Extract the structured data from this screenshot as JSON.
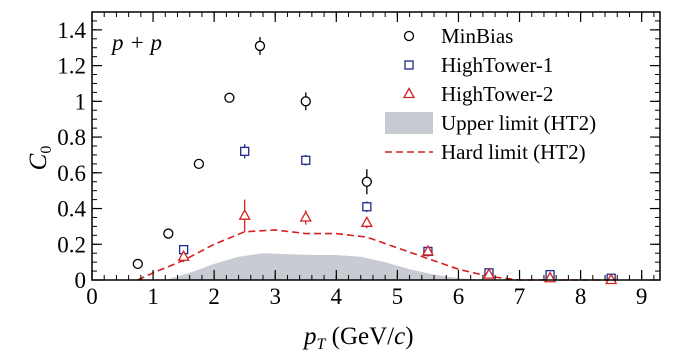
{
  "chart_data": {
    "type": "scatter",
    "annotation": "p + p",
    "xlabel": {
      "main": "p",
      "sub": "T",
      "rest": " (GeV/",
      "italic_c": "c",
      "close": ")"
    },
    "ylabel": {
      "main": "C",
      "sub": "0"
    },
    "xlim": [
      0,
      9.3
    ],
    "ylim": [
      0,
      1.5
    ],
    "x_ticks": [
      "0",
      "1",
      "2",
      "3",
      "4",
      "5",
      "6",
      "7",
      "8",
      "9"
    ],
    "y_ticks": [
      "0",
      "0.2",
      "0.4",
      "0.6",
      "0.8",
      "1",
      "1.2",
      "1.4"
    ],
    "legend_position": "top-right",
    "series": [
      {
        "name": "MinBias",
        "marker": "circle",
        "color": "#000000",
        "x": [
          0.75,
          1.25,
          1.75,
          2.25,
          2.75,
          3.5,
          4.5
        ],
        "y": [
          0.09,
          0.26,
          0.65,
          1.02,
          1.31,
          1.0,
          0.55
        ],
        "yerr": [
          0.0,
          0.0,
          0.0,
          0.0,
          0.05,
          0.05,
          0.07
        ]
      },
      {
        "name": "HighTower-1",
        "marker": "square",
        "color": "#1f2a8a",
        "x": [
          1.5,
          2.5,
          3.5,
          4.5,
          5.5,
          6.5,
          7.5,
          8.5
        ],
        "y": [
          0.17,
          0.72,
          0.67,
          0.41,
          0.16,
          0.04,
          0.03,
          0.01
        ],
        "yerr": [
          0.02,
          0.04,
          0.03,
          0.03,
          0.02,
          0.0,
          0.0,
          0.0
        ]
      },
      {
        "name": "HighTower-2",
        "marker": "triangle",
        "color": "#d42020",
        "x": [
          1.5,
          2.5,
          3.5,
          4.5,
          5.5,
          6.5,
          7.5,
          8.5
        ],
        "y": [
          0.13,
          0.36,
          0.35,
          0.32,
          0.16,
          0.03,
          0.01,
          0.0
        ],
        "yerr": [
          0.03,
          0.09,
          0.04,
          0.03,
          0.03,
          0.0,
          0.0,
          0.0
        ]
      },
      {
        "name": "Upper limit (HT2)",
        "kind": "band",
        "color": "#c8cbd2",
        "x": [
          1.2,
          1.6,
          2.0,
          2.4,
          2.8,
          3.2,
          3.6,
          4.0,
          4.4,
          4.8,
          5.2,
          5.6,
          6.0,
          6.4
        ],
        "y": [
          0.0,
          0.04,
          0.09,
          0.13,
          0.15,
          0.145,
          0.14,
          0.14,
          0.13,
          0.1,
          0.06,
          0.03,
          0.01,
          0.0
        ]
      },
      {
        "name": "Hard limit (HT2)",
        "kind": "dashed-line",
        "color": "#d42020",
        "x": [
          0.75,
          1.0,
          1.5,
          2.0,
          2.5,
          3.0,
          3.5,
          4.0,
          4.5,
          5.0,
          5.5,
          6.0,
          6.5,
          7.0,
          7.5,
          8.0,
          8.5
        ],
        "y": [
          0.0,
          0.04,
          0.11,
          0.2,
          0.27,
          0.28,
          0.26,
          0.26,
          0.24,
          0.18,
          0.12,
          0.06,
          0.02,
          0.0,
          0.0,
          0.0,
          0.0
        ]
      }
    ]
  }
}
